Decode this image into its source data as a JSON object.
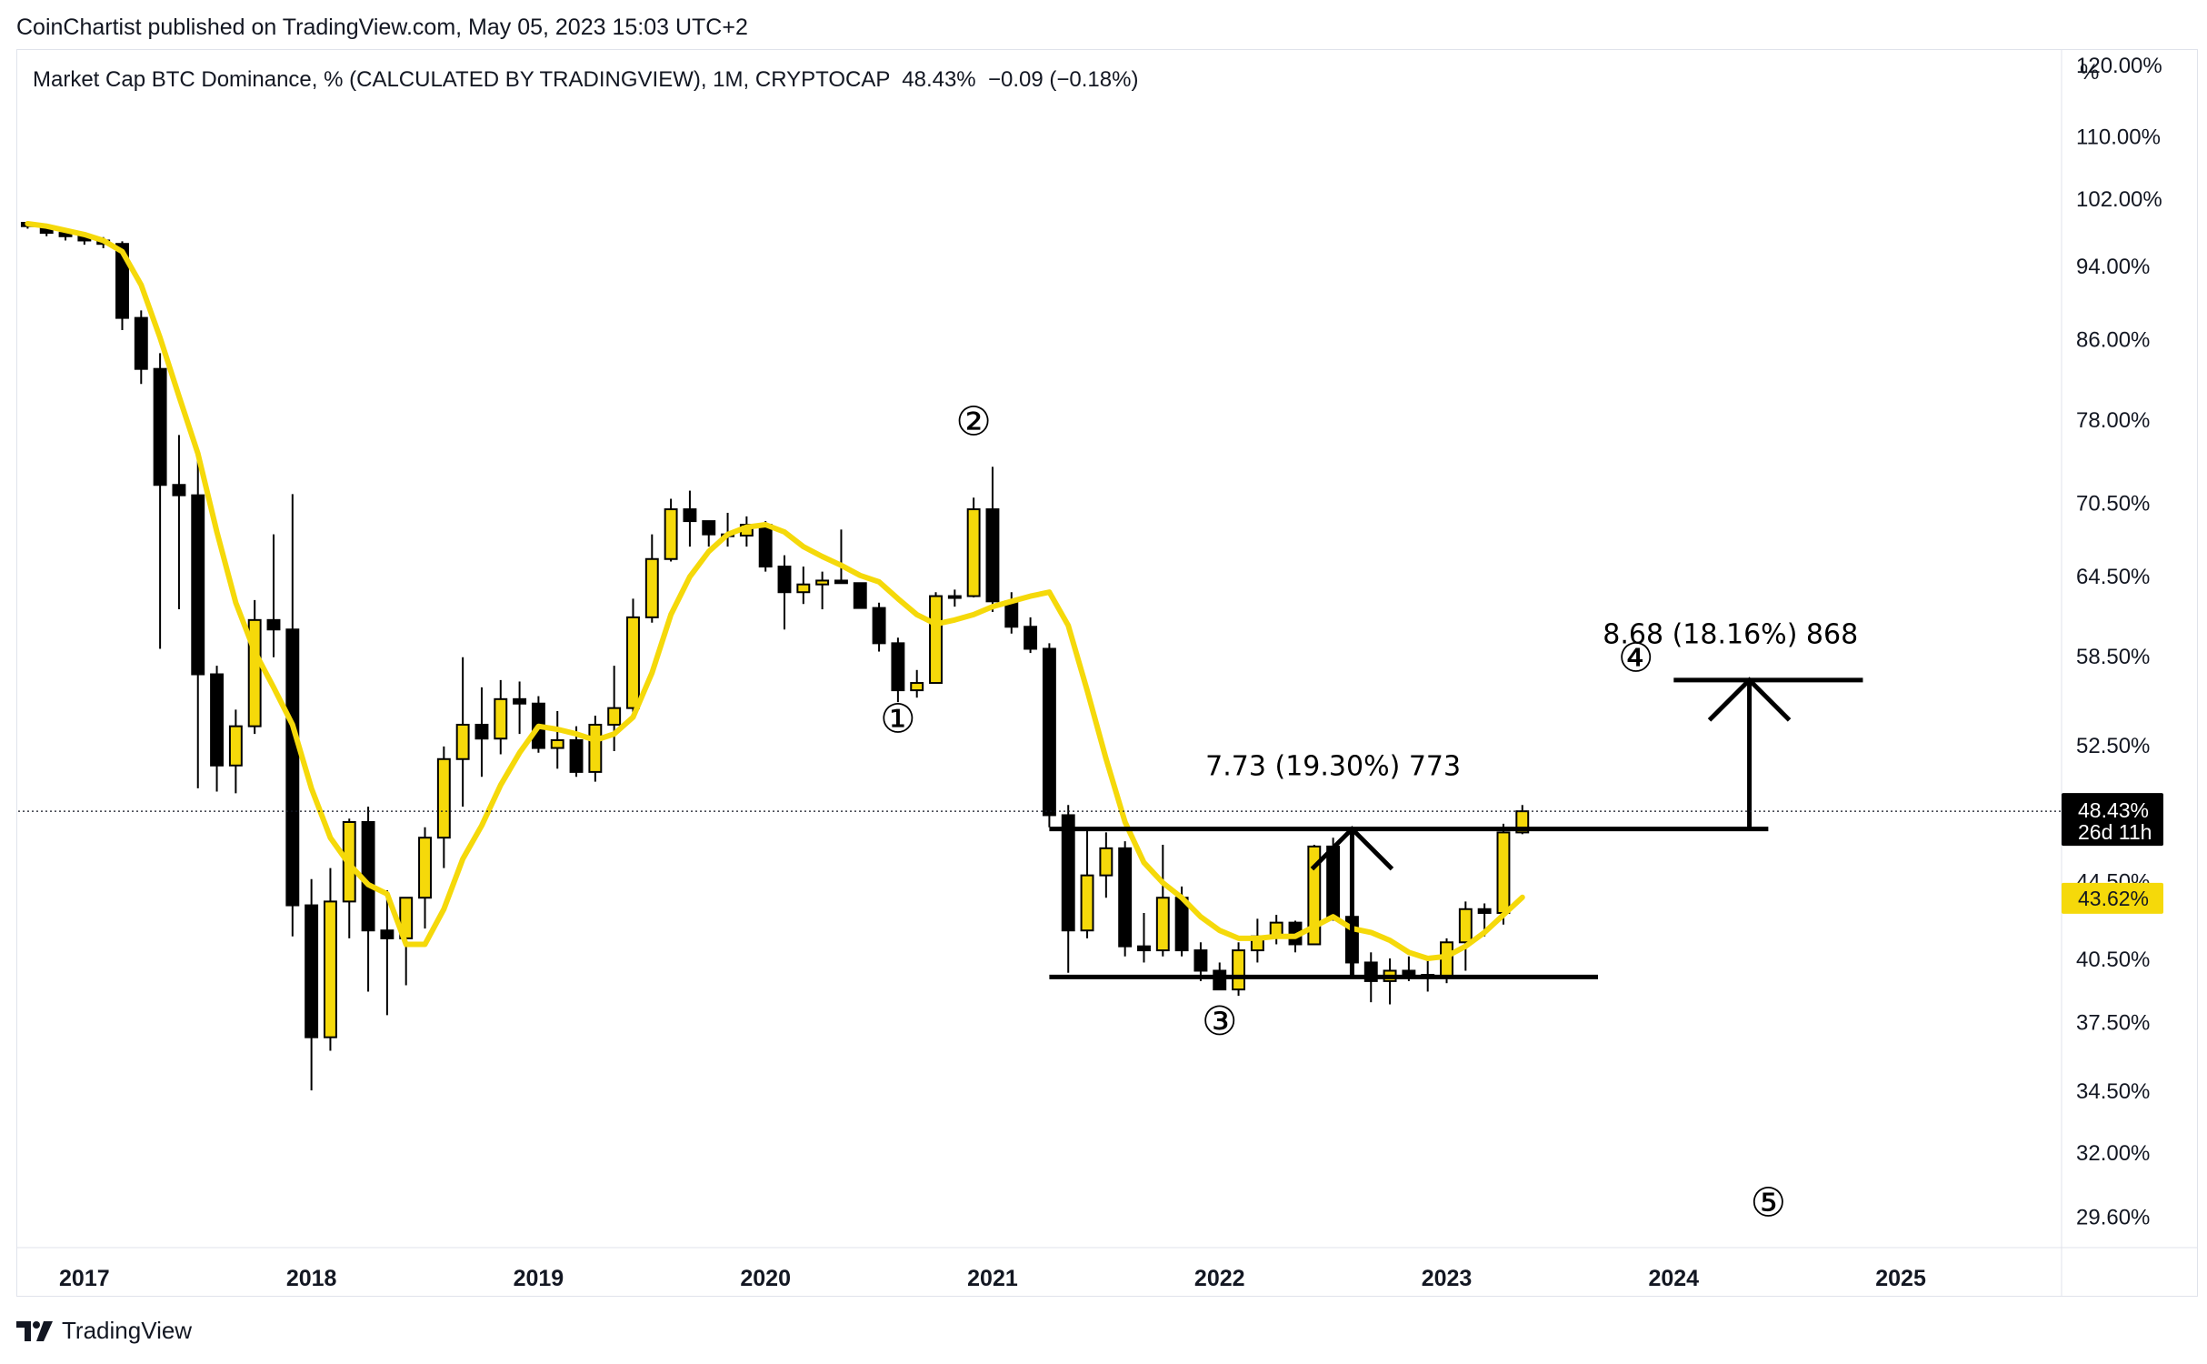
{
  "header": {
    "published": "CoinChartist published on TradingView.com, May 05, 2023 15:03 UTC+2",
    "symbol_title": "Market Cap BTC Dominance, % (CALCULATED BY TRADINGVIEW), 1M, CRYPTOCAP  48.43%  −0.09 (−0.18%)"
  },
  "price_axis": {
    "unit": "%",
    "ticks": [
      "120.00%",
      "110.00%",
      "102.00%",
      "94.00%",
      "86.00%",
      "78.00%",
      "70.50%",
      "64.50%",
      "58.50%",
      "52.50%",
      "44.50%",
      "40.50%",
      "37.50%",
      "34.50%",
      "32.00%",
      "29.60%"
    ],
    "last_price_label": "48.43%",
    "countdown_label": "26d 11h",
    "ma_label": "43.62%"
  },
  "time_axis": {
    "labels": [
      "2017",
      "2018",
      "2019",
      "2020",
      "2021",
      "2022",
      "2023",
      "2024",
      "2025"
    ]
  },
  "annotations": {
    "wave_1": "①",
    "wave_2": "②",
    "wave_3": "③",
    "wave_4": "④",
    "wave_5": "⑤",
    "measure_range": "7.73 (19.30%) 773",
    "measure_target": "8.68 (18.16%) 868"
  },
  "footer": {
    "brand": "TradingView"
  },
  "colors": {
    "up": "#f5d90a",
    "down": "#000000",
    "ma": "#f5d90a",
    "grid": "#e0e3eb",
    "ma_badge": "#f5d90a"
  },
  "chart_data": {
    "type": "candlestick",
    "title": "Market Cap BTC Dominance, % (CALCULATED BY TRADINGVIEW), 1M, CRYPTOCAP",
    "x_unit": "month",
    "y_scale": "log",
    "ylim": [
      28.5,
      122
    ],
    "xlim": [
      "2016-10",
      "2025-09"
    ],
    "last_price": 48.43,
    "change": -0.09,
    "change_pct": -0.18,
    "ma_last": 43.62,
    "candles": [
      {
        "t": "2016-10",
        "o": 99.0,
        "h": 99.2,
        "l": 98.3,
        "c": 98.6
      },
      {
        "t": "2016-11",
        "o": 98.6,
        "h": 98.9,
        "l": 97.4,
        "c": 97.8
      },
      {
        "t": "2016-12",
        "o": 97.8,
        "h": 98.2,
        "l": 96.9,
        "c": 97.4
      },
      {
        "t": "2017-01",
        "o": 97.4,
        "h": 97.8,
        "l": 96.4,
        "c": 96.9
      },
      {
        "t": "2017-02",
        "o": 96.9,
        "h": 97.3,
        "l": 96.0,
        "c": 96.5
      },
      {
        "t": "2017-03",
        "o": 96.5,
        "h": 96.8,
        "l": 86.9,
        "c": 88.2
      },
      {
        "t": "2017-04",
        "o": 88.2,
        "h": 89.0,
        "l": 81.4,
        "c": 82.9
      },
      {
        "t": "2017-05",
        "o": 82.9,
        "h": 84.5,
        "l": 59.0,
        "c": 72.0
      },
      {
        "t": "2017-06",
        "o": 72.0,
        "h": 76.5,
        "l": 61.9,
        "c": 71.1
      },
      {
        "t": "2017-07",
        "o": 71.1,
        "h": 74.8,
        "l": 49.8,
        "c": 57.2
      },
      {
        "t": "2017-08",
        "o": 57.2,
        "h": 57.8,
        "l": 49.6,
        "c": 51.2
      },
      {
        "t": "2017-09",
        "o": 51.2,
        "h": 54.8,
        "l": 49.5,
        "c": 53.7
      },
      {
        "t": "2017-10",
        "o": 53.7,
        "h": 62.6,
        "l": 53.2,
        "c": 61.1
      },
      {
        "t": "2017-11",
        "o": 61.1,
        "h": 67.8,
        "l": 58.4,
        "c": 60.4
      },
      {
        "t": "2017-12",
        "o": 60.4,
        "h": 71.2,
        "l": 41.6,
        "c": 43.2
      },
      {
        "t": "2018-01",
        "o": 43.2,
        "h": 44.6,
        "l": 34.5,
        "c": 36.8
      },
      {
        "t": "2018-02",
        "o": 36.8,
        "h": 45.2,
        "l": 36.2,
        "c": 43.4
      },
      {
        "t": "2018-03",
        "o": 43.4,
        "h": 48.0,
        "l": 41.5,
        "c": 47.8
      },
      {
        "t": "2018-04",
        "o": 47.8,
        "h": 48.7,
        "l": 38.9,
        "c": 41.9
      },
      {
        "t": "2018-05",
        "o": 41.9,
        "h": 44.0,
        "l": 37.8,
        "c": 41.5
      },
      {
        "t": "2018-06",
        "o": 41.5,
        "h": 43.5,
        "l": 39.2,
        "c": 43.6
      },
      {
        "t": "2018-07",
        "o": 43.6,
        "h": 47.5,
        "l": 42.0,
        "c": 46.9
      },
      {
        "t": "2018-08",
        "o": 46.9,
        "h": 52.4,
        "l": 45.2,
        "c": 51.6
      },
      {
        "t": "2018-09",
        "o": 51.6,
        "h": 58.4,
        "l": 48.7,
        "c": 53.8
      },
      {
        "t": "2018-10",
        "o": 53.8,
        "h": 56.3,
        "l": 50.5,
        "c": 52.9
      },
      {
        "t": "2018-11",
        "o": 52.9,
        "h": 56.8,
        "l": 51.9,
        "c": 55.5
      },
      {
        "t": "2018-12",
        "o": 55.5,
        "h": 56.7,
        "l": 53.2,
        "c": 55.2
      },
      {
        "t": "2019-01",
        "o": 55.2,
        "h": 55.7,
        "l": 52.0,
        "c": 52.3
      },
      {
        "t": "2019-02",
        "o": 52.3,
        "h": 54.7,
        "l": 51.0,
        "c": 52.8
      },
      {
        "t": "2019-03",
        "o": 52.8,
        "h": 53.7,
        "l": 50.5,
        "c": 50.8
      },
      {
        "t": "2019-04",
        "o": 50.8,
        "h": 54.4,
        "l": 50.2,
        "c": 53.8
      },
      {
        "t": "2019-05",
        "o": 53.8,
        "h": 57.8,
        "l": 52.1,
        "c": 54.9
      },
      {
        "t": "2019-06",
        "o": 54.9,
        "h": 62.7,
        "l": 54.6,
        "c": 61.3
      },
      {
        "t": "2019-07",
        "o": 61.3,
        "h": 67.8,
        "l": 60.9,
        "c": 65.8
      },
      {
        "t": "2019-08",
        "o": 65.8,
        "h": 70.8,
        "l": 65.6,
        "c": 69.9
      },
      {
        "t": "2019-09",
        "o": 69.9,
        "h": 71.5,
        "l": 66.8,
        "c": 68.9
      },
      {
        "t": "2019-10",
        "o": 68.9,
        "h": 68.9,
        "l": 66.8,
        "c": 67.8
      },
      {
        "t": "2019-11",
        "o": 67.8,
        "h": 69.6,
        "l": 66.8,
        "c": 67.7
      },
      {
        "t": "2019-12",
        "o": 67.7,
        "h": 69.3,
        "l": 66.8,
        "c": 68.6
      },
      {
        "t": "2020-01",
        "o": 68.6,
        "h": 68.9,
        "l": 64.8,
        "c": 65.2
      },
      {
        "t": "2020-02",
        "o": 65.2,
        "h": 66.1,
        "l": 60.4,
        "c": 63.2
      },
      {
        "t": "2020-03",
        "o": 63.2,
        "h": 65.2,
        "l": 62.3,
        "c": 63.8
      },
      {
        "t": "2020-04",
        "o": 63.8,
        "h": 64.8,
        "l": 61.9,
        "c": 64.1
      },
      {
        "t": "2020-05",
        "o": 64.1,
        "h": 68.2,
        "l": 63.9,
        "c": 63.9
      },
      {
        "t": "2020-06",
        "o": 63.9,
        "h": 63.9,
        "l": 62.1,
        "c": 62.0
      },
      {
        "t": "2020-07",
        "o": 62.0,
        "h": 62.4,
        "l": 58.8,
        "c": 59.4
      },
      {
        "t": "2020-08",
        "o": 59.4,
        "h": 59.8,
        "l": 55.3,
        "c": 56.1
      },
      {
        "t": "2020-09",
        "o": 56.1,
        "h": 57.5,
        "l": 55.6,
        "c": 56.6
      },
      {
        "t": "2020-10",
        "o": 56.6,
        "h": 63.2,
        "l": 56.6,
        "c": 62.9
      },
      {
        "t": "2020-11",
        "o": 62.9,
        "h": 63.4,
        "l": 62.1,
        "c": 62.9
      },
      {
        "t": "2020-12",
        "o": 62.9,
        "h": 70.9,
        "l": 62.8,
        "c": 69.9
      },
      {
        "t": "2021-01",
        "o": 69.9,
        "h": 73.6,
        "l": 61.7,
        "c": 62.5
      },
      {
        "t": "2021-02",
        "o": 62.5,
        "h": 63.2,
        "l": 60.1,
        "c": 60.6
      },
      {
        "t": "2021-03",
        "o": 60.6,
        "h": 61.3,
        "l": 58.7,
        "c": 59.0
      },
      {
        "t": "2021-04",
        "o": 59.0,
        "h": 59.4,
        "l": 47.5,
        "c": 48.2
      },
      {
        "t": "2021-05",
        "o": 48.2,
        "h": 48.8,
        "l": 39.8,
        "c": 41.9
      },
      {
        "t": "2021-06",
        "o": 41.9,
        "h": 47.3,
        "l": 41.5,
        "c": 44.8
      },
      {
        "t": "2021-07",
        "o": 44.8,
        "h": 47.2,
        "l": 43.6,
        "c": 46.3
      },
      {
        "t": "2021-08",
        "o": 46.3,
        "h": 46.7,
        "l": 40.6,
        "c": 41.1
      },
      {
        "t": "2021-09",
        "o": 41.1,
        "h": 42.8,
        "l": 40.3,
        "c": 40.9
      },
      {
        "t": "2021-10",
        "o": 40.9,
        "h": 46.5,
        "l": 40.6,
        "c": 43.6
      },
      {
        "t": "2021-11",
        "o": 43.6,
        "h": 44.2,
        "l": 40.6,
        "c": 40.9
      },
      {
        "t": "2021-12",
        "o": 40.9,
        "h": 41.3,
        "l": 39.4,
        "c": 39.9
      },
      {
        "t": "2022-01",
        "o": 39.9,
        "h": 40.3,
        "l": 39.0,
        "c": 39.0
      },
      {
        "t": "2022-02",
        "o": 39.0,
        "h": 41.3,
        "l": 38.7,
        "c": 40.9
      },
      {
        "t": "2022-03",
        "o": 40.9,
        "h": 42.5,
        "l": 40.3,
        "c": 41.6
      },
      {
        "t": "2022-04",
        "o": 41.6,
        "h": 42.7,
        "l": 41.2,
        "c": 42.3
      },
      {
        "t": "2022-05",
        "o": 42.3,
        "h": 42.4,
        "l": 40.8,
        "c": 41.2
      },
      {
        "t": "2022-06",
        "o": 41.2,
        "h": 46.5,
        "l": 41.2,
        "c": 46.4
      },
      {
        "t": "2022-07",
        "o": 46.4,
        "h": 46.9,
        "l": 42.4,
        "c": 42.6
      },
      {
        "t": "2022-08",
        "o": 42.6,
        "h": 43.0,
        "l": 40.0,
        "c": 40.3
      },
      {
        "t": "2022-09",
        "o": 40.3,
        "h": 40.8,
        "l": 38.4,
        "c": 39.4
      },
      {
        "t": "2022-10",
        "o": 39.4,
        "h": 40.5,
        "l": 38.3,
        "c": 39.9
      },
      {
        "t": "2022-11",
        "o": 39.9,
        "h": 40.6,
        "l": 39.4,
        "c": 39.7
      },
      {
        "t": "2022-12",
        "o": 39.7,
        "h": 40.6,
        "l": 38.9,
        "c": 39.6
      },
      {
        "t": "2023-01",
        "o": 39.6,
        "h": 41.5,
        "l": 39.3,
        "c": 41.3
      },
      {
        "t": "2023-02",
        "o": 41.3,
        "h": 43.4,
        "l": 39.9,
        "c": 43.0
      },
      {
        "t": "2023-03",
        "o": 43.0,
        "h": 43.3,
        "l": 41.6,
        "c": 42.8
      },
      {
        "t": "2023-04",
        "o": 42.8,
        "h": 47.7,
        "l": 42.2,
        "c": 47.2
      },
      {
        "t": "2023-05",
        "o": 47.2,
        "h": 48.8,
        "l": 47.1,
        "c": 48.43
      }
    ],
    "moving_average": [
      {
        "t": "2016-10",
        "v": 98.9
      },
      {
        "t": "2016-11",
        "v": 98.6
      },
      {
        "t": "2016-12",
        "v": 98.1
      },
      {
        "t": "2017-01",
        "v": 97.6
      },
      {
        "t": "2017-02",
        "v": 96.9
      },
      {
        "t": "2017-03",
        "v": 95.6
      },
      {
        "t": "2017-04",
        "v": 91.8
      },
      {
        "t": "2017-05",
        "v": 86.1
      },
      {
        "t": "2017-06",
        "v": 80.2
      },
      {
        "t": "2017-07",
        "v": 74.8
      },
      {
        "t": "2017-08",
        "v": 68.0
      },
      {
        "t": "2017-09",
        "v": 62.4
      },
      {
        "t": "2017-10",
        "v": 58.8
      },
      {
        "t": "2017-11",
        "v": 56.3
      },
      {
        "t": "2017-12",
        "v": 53.8
      },
      {
        "t": "2018-01",
        "v": 49.8
      },
      {
        "t": "2018-02",
        "v": 46.9
      },
      {
        "t": "2018-03",
        "v": 45.4
      },
      {
        "t": "2018-04",
        "v": 44.3
      },
      {
        "t": "2018-05",
        "v": 43.8
      },
      {
        "t": "2018-06",
        "v": 41.2
      },
      {
        "t": "2018-07",
        "v": 41.2
      },
      {
        "t": "2018-08",
        "v": 43.0
      },
      {
        "t": "2018-09",
        "v": 45.7
      },
      {
        "t": "2018-10",
        "v": 47.6
      },
      {
        "t": "2018-11",
        "v": 50.0
      },
      {
        "t": "2018-12",
        "v": 52.0
      },
      {
        "t": "2019-01",
        "v": 53.7
      },
      {
        "t": "2019-02",
        "v": 53.5
      },
      {
        "t": "2019-03",
        "v": 53.2
      },
      {
        "t": "2019-04",
        "v": 52.8
      },
      {
        "t": "2019-05",
        "v": 53.2
      },
      {
        "t": "2019-06",
        "v": 54.3
      },
      {
        "t": "2019-07",
        "v": 57.3
      },
      {
        "t": "2019-08",
        "v": 61.5
      },
      {
        "t": "2019-09",
        "v": 64.4
      },
      {
        "t": "2019-10",
        "v": 66.4
      },
      {
        "t": "2019-11",
        "v": 67.8
      },
      {
        "t": "2019-12",
        "v": 68.4
      },
      {
        "t": "2020-01",
        "v": 68.6
      },
      {
        "t": "2020-02",
        "v": 68.0
      },
      {
        "t": "2020-03",
        "v": 66.8
      },
      {
        "t": "2020-04",
        "v": 66.0
      },
      {
        "t": "2020-05",
        "v": 65.3
      },
      {
        "t": "2020-06",
        "v": 64.5
      },
      {
        "t": "2020-07",
        "v": 64.0
      },
      {
        "t": "2020-08",
        "v": 62.7
      },
      {
        "t": "2020-09",
        "v": 61.5
      },
      {
        "t": "2020-10",
        "v": 60.8
      },
      {
        "t": "2020-11",
        "v": 61.1
      },
      {
        "t": "2020-12",
        "v": 61.5
      },
      {
        "t": "2021-01",
        "v": 62.1
      },
      {
        "t": "2021-02",
        "v": 62.5
      },
      {
        "t": "2021-03",
        "v": 62.9
      },
      {
        "t": "2021-04",
        "v": 63.2
      },
      {
        "t": "2021-05",
        "v": 60.7
      },
      {
        "t": "2021-06",
        "v": 56.1
      },
      {
        "t": "2021-07",
        "v": 51.6
      },
      {
        "t": "2021-08",
        "v": 47.8
      },
      {
        "t": "2021-09",
        "v": 45.5
      },
      {
        "t": "2021-10",
        "v": 44.4
      },
      {
        "t": "2021-11",
        "v": 43.6
      },
      {
        "t": "2021-12",
        "v": 42.6
      },
      {
        "t": "2022-01",
        "v": 41.9
      },
      {
        "t": "2022-02",
        "v": 41.5
      },
      {
        "t": "2022-03",
        "v": 41.5
      },
      {
        "t": "2022-04",
        "v": 41.6
      },
      {
        "t": "2022-05",
        "v": 41.6
      },
      {
        "t": "2022-06",
        "v": 42.1
      },
      {
        "t": "2022-07",
        "v": 42.6
      },
      {
        "t": "2022-08",
        "v": 42.0
      },
      {
        "t": "2022-09",
        "v": 41.8
      },
      {
        "t": "2022-10",
        "v": 41.4
      },
      {
        "t": "2022-11",
        "v": 40.8
      },
      {
        "t": "2022-12",
        "v": 40.5
      },
      {
        "t": "2023-01",
        "v": 40.6
      },
      {
        "t": "2023-02",
        "v": 41.1
      },
      {
        "t": "2023-03",
        "v": 41.8
      },
      {
        "t": "2023-04",
        "v": 42.7
      },
      {
        "t": "2023-05",
        "v": 43.62
      }
    ],
    "drawings": {
      "resistance": {
        "from": "2021-04",
        "to": "2024-06",
        "value": 47.4
      },
      "support": {
        "from": "2021-04",
        "to": "2023-09",
        "value": 39.6
      },
      "target_line": {
        "from": "2024-01",
        "to": "2024-11",
        "value": 56.8
      },
      "arrow_mid": {
        "t": "2022-08",
        "from": 39.6,
        "to": 47.4
      },
      "arrow_target": {
        "t": "2024-05",
        "from": 47.4,
        "to": 56.8
      }
    }
  }
}
